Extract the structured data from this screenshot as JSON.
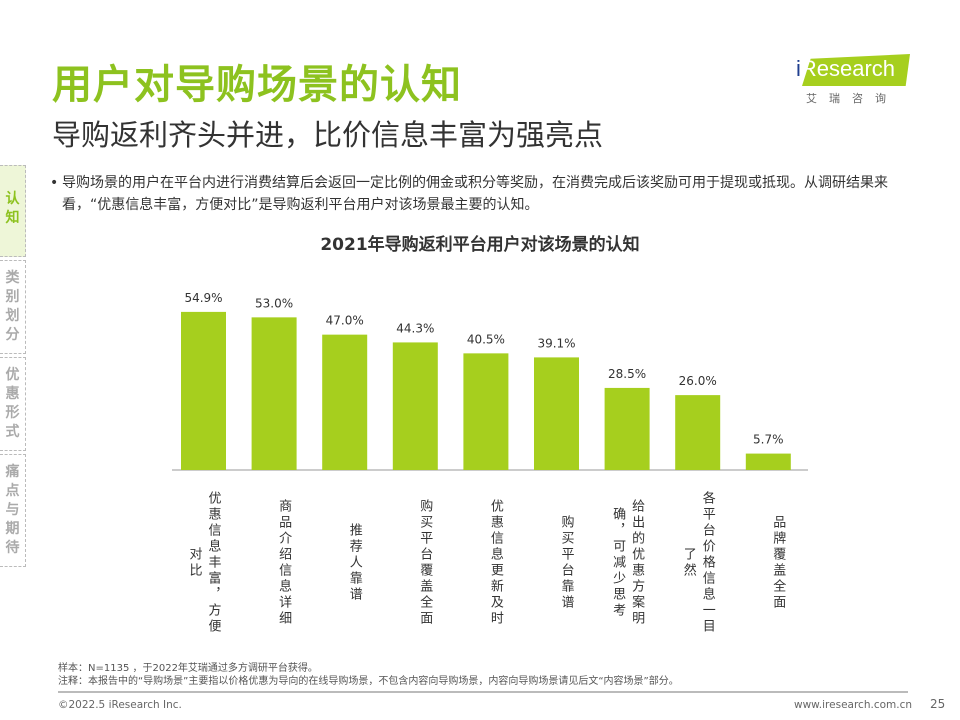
{
  "title": "用户对导购场景的认知",
  "subtitle": "导购返利齐头并进，比价信息丰富为强亮点",
  "logo": {
    "brand": "iResearch",
    "cn": "艾瑞咨询"
  },
  "sidebar": [
    {
      "label": "认知",
      "active": true
    },
    {
      "label": "类别划分"
    },
    {
      "label": "优惠形式"
    },
    {
      "label": "痛点与期待"
    }
  ],
  "bullet": "导购场景的用户在平台内进行消费结算后会返回一定比例的佣金或积分等奖励，在消费完成后该奖励可用于提现或抵现。从调研结果来看，“优惠信息丰富，方便对比”是导购返利平台用户对该场景最主要的认知。",
  "chart_data": {
    "type": "bar",
    "title": "2021年导购返利平台用户对该场景的认知",
    "categories": [
      "优惠信息丰富，方便对比",
      "商品介绍信息详细",
      "推荐人靠谱",
      "购买平台覆盖全面",
      "优惠信息更新及时",
      "购买平台靠谱",
      "给出的优惠方案明确，可减少思考",
      "各平台价格信息一目了然",
      "品牌覆盖全面"
    ],
    "values": [
      54.9,
      53.0,
      47.0,
      44.3,
      40.5,
      39.1,
      28.5,
      26.0,
      5.7
    ],
    "labels": [
      "54.9%",
      "53.0%",
      "47.0%",
      "44.3%",
      "40.5%",
      "39.1%",
      "28.5%",
      "26.0%",
      "5.7%"
    ],
    "color": "#a6cf1e",
    "grid": false
  },
  "notes": {
    "sample": "样本：N=1135 ，于2022年艾瑞通过多方调研平台获得。",
    "note": "注释：本报告中的“导购场景”主要指以价格优惠为导向的在线导购场景，不包含内容向导购场景，内容向导购场景请见后文“内容场景”部分。"
  },
  "footer": {
    "copyright": "©2022.5 iResearch Inc.",
    "url": "www.iresearch.com.cn",
    "page": "25"
  }
}
